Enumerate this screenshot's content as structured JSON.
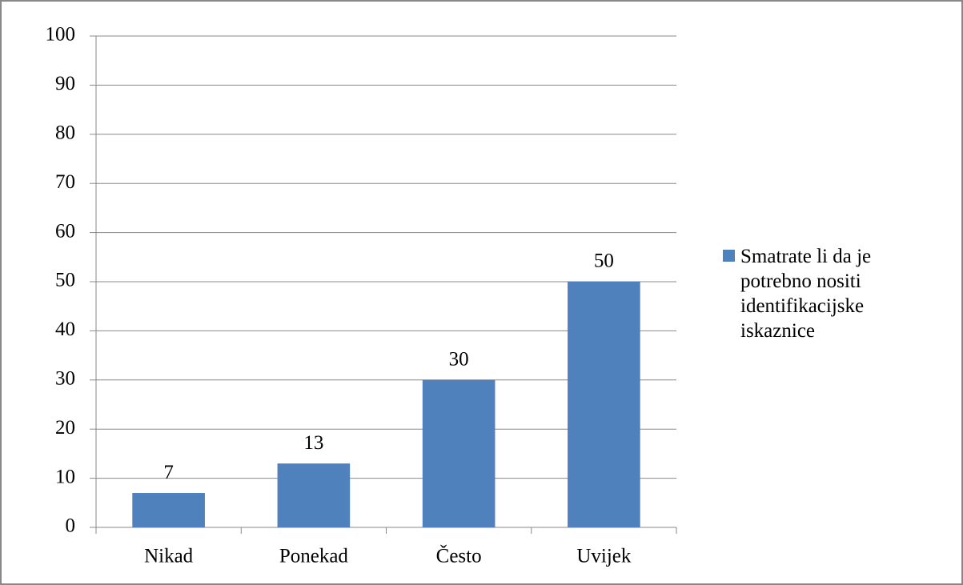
{
  "chart_data": {
    "type": "bar",
    "categories": [
      "Nikad",
      "Ponekad",
      "Često",
      "Uvijek"
    ],
    "series": [
      {
        "name": "Smatrate li da je potrebno nositi identifikacijske iskaznice",
        "color": "#4f81bd",
        "values": [
          7,
          13,
          30,
          50
        ]
      }
    ],
    "ylim": [
      0,
      100
    ],
    "yticks": [
      0,
      10,
      20,
      30,
      40,
      50,
      60,
      70,
      80,
      90,
      100
    ],
    "grid": true,
    "legend": "right"
  }
}
